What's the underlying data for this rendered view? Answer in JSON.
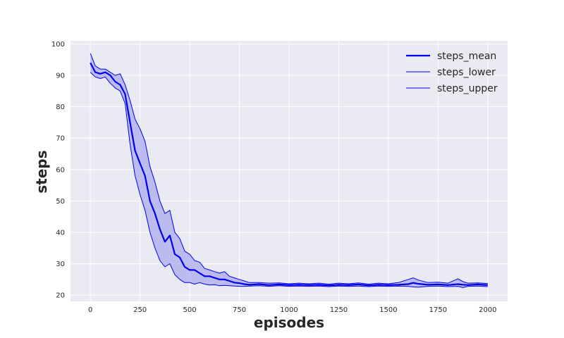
{
  "chart_data": {
    "type": "line",
    "title": "",
    "xlabel": "episodes",
    "ylabel": "steps",
    "xlim": [
      -100,
      2100
    ],
    "ylim": [
      18,
      101
    ],
    "xticks": [
      0,
      250,
      500,
      750,
      1000,
      1250,
      1500,
      1750,
      2000
    ],
    "yticks": [
      20,
      30,
      40,
      50,
      60,
      70,
      80,
      90,
      100
    ],
    "grid": true,
    "legend_position": "top-right",
    "background": "#EAEAF2",
    "color": "#0000EE",
    "band_fill": "#B3B3F0",
    "x": [
      0,
      25,
      50,
      75,
      100,
      125,
      150,
      175,
      200,
      225,
      250,
      275,
      300,
      325,
      350,
      375,
      400,
      425,
      450,
      475,
      500,
      525,
      550,
      575,
      600,
      625,
      650,
      675,
      700,
      725,
      750,
      775,
      800,
      850,
      900,
      950,
      1000,
      1050,
      1100,
      1150,
      1200,
      1250,
      1300,
      1350,
      1400,
      1450,
      1500,
      1550,
      1600,
      1625,
      1650,
      1700,
      1750,
      1800,
      1850,
      1875,
      1900,
      1950,
      2000
    ],
    "series": [
      {
        "name": "steps_mean",
        "values": [
          94,
          91,
          90.5,
          91,
          90,
          88,
          87,
          84,
          75,
          66,
          62,
          58,
          50,
          46,
          41,
          37,
          39,
          33,
          32,
          29,
          28,
          28,
          27,
          26,
          26,
          25.5,
          25,
          25,
          24.5,
          24,
          23.8,
          23.5,
          23.3,
          23.5,
          23.2,
          23.4,
          23.2,
          23.3,
          23.2,
          23.3,
          23.1,
          23.3,
          23.2,
          23.4,
          23.1,
          23.3,
          23.2,
          23.3,
          23.5,
          23.9,
          23.6,
          23.3,
          23.4,
          23.2,
          23.5,
          23.3,
          23.2,
          23.4,
          23.2
        ]
      },
      {
        "name": "steps_lower",
        "values": [
          91,
          89.5,
          89,
          89.5,
          87.5,
          86,
          85,
          81,
          68,
          58,
          52,
          47,
          40,
          35,
          31,
          29,
          30,
          26.5,
          25,
          24,
          24,
          23.5,
          24,
          23.5,
          23.2,
          23.3,
          23,
          23.1,
          23,
          22.9,
          22.8,
          22.8,
          22.9,
          23,
          22.8,
          23,
          22.8,
          22.9,
          22.8,
          22.9,
          22.7,
          22.9,
          22.8,
          22.9,
          22.7,
          22.9,
          22.8,
          22.9,
          22.8,
          22.6,
          22.5,
          22.8,
          22.9,
          22.7,
          22.8,
          22.4,
          22.8,
          22.9,
          22.7
        ]
      },
      {
        "name": "steps_upper",
        "values": [
          97,
          93,
          92,
          92,
          91,
          90,
          90.5,
          87,
          82,
          76,
          73,
          69,
          61,
          56,
          50,
          46,
          47,
          40,
          38,
          34,
          33,
          31,
          30.5,
          28.5,
          28,
          27.5,
          27,
          27.5,
          26,
          25.5,
          25,
          24.5,
          24,
          24,
          23.8,
          23.9,
          23.6,
          23.8,
          23.6,
          23.8,
          23.5,
          23.8,
          23.6,
          23.9,
          23.5,
          23.8,
          23.6,
          24,
          25,
          25.5,
          24.8,
          24,
          24.1,
          23.8,
          25.2,
          24.3,
          23.8,
          23.9,
          23.7
        ]
      }
    ]
  }
}
